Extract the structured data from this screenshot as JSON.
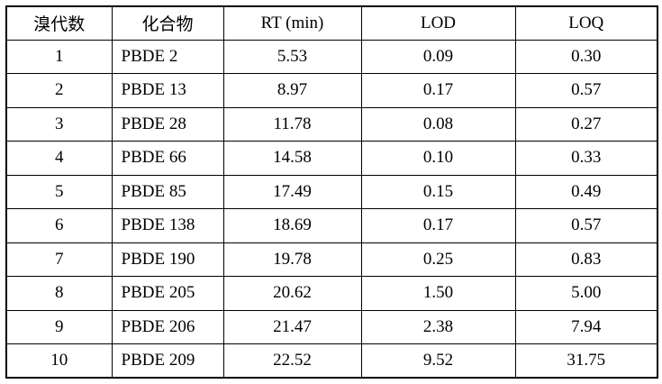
{
  "table": {
    "headers": [
      "溴代数",
      "化合物",
      "RT (min)",
      "LOD",
      "LOQ"
    ],
    "rows": [
      [
        "1",
        "PBDE 2",
        "5.53",
        "0.09",
        "0.30"
      ],
      [
        "2",
        "PBDE 13",
        "8.97",
        "0.17",
        "0.57"
      ],
      [
        "3",
        "PBDE 28",
        "11.78",
        "0.08",
        "0.27"
      ],
      [
        "4",
        "PBDE 66",
        "14.58",
        "0.10",
        "0.33"
      ],
      [
        "5",
        "PBDE 85",
        "17.49",
        "0.15",
        "0.49"
      ],
      [
        "6",
        "PBDE 138",
        "18.69",
        "0.17",
        "0.57"
      ],
      [
        "7",
        "PBDE 190",
        "19.78",
        "0.25",
        "0.83"
      ],
      [
        "8",
        "PBDE 205",
        "20.62",
        "1.50",
        "5.00"
      ],
      [
        "9",
        "PBDE 206",
        "21.47",
        "2.38",
        "7.94"
      ],
      [
        "10",
        "PBDE 209",
        "22.52",
        "9.52",
        "31.75"
      ]
    ],
    "border_color": "#000000",
    "background_color": "#ffffff"
  }
}
